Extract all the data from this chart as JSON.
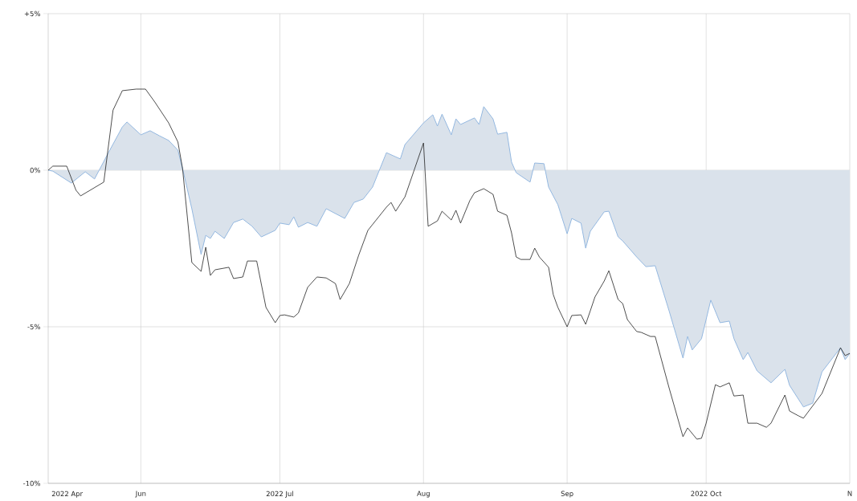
{
  "chart_data": {
    "type": "line",
    "grid": true,
    "ylim": [
      -10,
      5
    ],
    "yticks": [
      {
        "value": 5,
        "label": "+5%"
      },
      {
        "value": 0,
        "label": "0%"
      },
      {
        "value": -5,
        "label": "-5%"
      },
      {
        "value": -10,
        "label": "-10%"
      }
    ],
    "xlim": [
      "2022-05-12",
      "2022-11-01"
    ],
    "annotations": [
      "2022 Apr"
    ],
    "xticks": [
      {
        "value": "2022-06-01",
        "label": "Jun"
      },
      {
        "value": "2022-07-01",
        "label": "2022 Jul"
      },
      {
        "value": "2022-08-01",
        "label": "Aug"
      },
      {
        "value": "2022-09-01",
        "label": "Sep"
      },
      {
        "value": "2022-10-01",
        "label": "2022 Oct"
      },
      {
        "value": "2022-11-01",
        "label": "N"
      }
    ],
    "series": [
      {
        "type": "area",
        "color": "#94b8e0",
        "x": [
          "2022-05-12",
          "2022-05-13",
          "2022-05-17",
          "2022-05-20",
          "2022-05-22",
          "2022-05-25",
          "2022-05-28",
          "2022-05-29",
          "2022-06-01",
          "2022-06-03",
          "2022-06-05",
          "2022-06-07",
          "2022-06-09",
          "2022-06-10",
          "2022-06-12",
          "2022-06-14",
          "2022-06-15",
          "2022-06-16",
          "2022-06-17",
          "2022-06-19",
          "2022-06-21",
          "2022-06-23",
          "2022-06-25",
          "2022-06-27",
          "2022-06-30",
          "2022-07-01",
          "2022-07-03",
          "2022-07-04",
          "2022-07-05",
          "2022-07-07",
          "2022-07-09",
          "2022-07-11",
          "2022-07-15",
          "2022-07-17",
          "2022-07-19",
          "2022-07-21",
          "2022-07-24",
          "2022-07-27",
          "2022-07-28",
          "2022-08-01",
          "2022-08-03",
          "2022-08-04",
          "2022-08-05",
          "2022-08-07",
          "2022-08-08",
          "2022-08-09",
          "2022-08-12",
          "2022-08-13",
          "2022-08-14",
          "2022-08-16",
          "2022-08-17",
          "2022-08-19",
          "2022-08-20",
          "2022-08-21",
          "2022-08-24",
          "2022-08-25",
          "2022-08-27",
          "2022-08-28",
          "2022-08-30",
          "2022-09-01",
          "2022-09-02",
          "2022-09-04",
          "2022-09-05",
          "2022-09-06",
          "2022-09-09",
          "2022-09-10",
          "2022-09-12",
          "2022-09-13",
          "2022-09-16",
          "2022-09-18",
          "2022-09-20",
          "2022-09-23",
          "2022-09-26",
          "2022-09-27",
          "2022-09-28",
          "2022-09-30",
          "2022-10-02",
          "2022-10-04",
          "2022-10-06",
          "2022-10-07",
          "2022-10-09",
          "2022-10-10",
          "2022-10-12",
          "2022-10-15",
          "2022-10-18",
          "2022-10-19",
          "2022-10-22",
          "2022-10-24",
          "2022-10-26",
          "2022-10-30",
          "2022-10-31",
          "2022-11-01"
        ],
        "values": [
          0,
          -0.03,
          -0.41,
          -0.05,
          -0.28,
          0.56,
          1.38,
          1.54,
          1.13,
          1.26,
          1.1,
          0.95,
          0.64,
          0.05,
          -1.23,
          -2.69,
          -2.08,
          -2.18,
          -1.95,
          -2.18,
          -1.67,
          -1.56,
          -1.79,
          -2.13,
          -1.92,
          -1.69,
          -1.74,
          -1.49,
          -1.82,
          -1.67,
          -1.79,
          -1.23,
          -1.54,
          -1.03,
          -0.92,
          -0.54,
          0.56,
          0.36,
          0.82,
          1.51,
          1.77,
          1.41,
          1.79,
          1.13,
          1.64,
          1.46,
          1.67,
          1.46,
          2.03,
          1.64,
          1.15,
          1.21,
          0.26,
          -0.08,
          -0.38,
          0.23,
          0.21,
          -0.54,
          -1.1,
          -2.03,
          -1.54,
          -1.69,
          -2.49,
          -1.95,
          -1.33,
          -1.31,
          -2.13,
          -2.26,
          -2.77,
          -3.08,
          -3.05,
          -4.49,
          -6.0,
          -5.31,
          -5.74,
          -5.38,
          -4.15,
          -4.87,
          -4.82,
          -5.38,
          -6.05,
          -5.82,
          -6.41,
          -6.79,
          -6.36,
          -6.87,
          -7.56,
          -7.44,
          -6.44,
          -5.67,
          -6.05,
          -5.85
        ]
      },
      {
        "color": "#222222",
        "x": [
          "2022-05-12",
          "2022-05-13",
          "2022-05-16",
          "2022-05-18",
          "2022-05-19",
          "2022-05-24",
          "2022-05-26",
          "2022-05-28",
          "2022-05-31",
          "2022-06-02",
          "2022-06-04",
          "2022-06-07",
          "2022-06-09",
          "2022-06-10",
          "2022-06-12",
          "2022-06-14",
          "2022-06-15",
          "2022-06-16",
          "2022-06-17",
          "2022-06-20",
          "2022-06-21",
          "2022-06-23",
          "2022-06-24",
          "2022-06-26",
          "2022-06-28",
          "2022-06-30",
          "2022-07-01",
          "2022-07-02",
          "2022-07-04",
          "2022-07-05",
          "2022-07-07",
          "2022-07-09",
          "2022-07-11",
          "2022-07-13",
          "2022-07-14",
          "2022-07-16",
          "2022-07-18",
          "2022-07-20",
          "2022-07-24",
          "2022-07-25",
          "2022-07-26",
          "2022-07-28",
          "2022-08-01",
          "2022-08-02",
          "2022-08-04",
          "2022-08-05",
          "2022-08-07",
          "2022-08-08",
          "2022-08-09",
          "2022-08-11",
          "2022-08-12",
          "2022-08-14",
          "2022-08-16",
          "2022-08-17",
          "2022-08-19",
          "2022-08-20",
          "2022-08-21",
          "2022-08-22",
          "2022-08-24",
          "2022-08-25",
          "2022-08-26",
          "2022-08-28",
          "2022-08-29",
          "2022-08-30",
          "2022-09-01",
          "2022-09-02",
          "2022-09-04",
          "2022-09-05",
          "2022-09-06",
          "2022-09-07",
          "2022-09-09",
          "2022-09-10",
          "2022-09-12",
          "2022-09-13",
          "2022-09-14",
          "2022-09-16",
          "2022-09-17",
          "2022-09-19",
          "2022-09-20",
          "2022-09-23",
          "2022-09-26",
          "2022-09-27",
          "2022-09-29",
          "2022-09-30",
          "2022-10-01",
          "2022-10-03",
          "2022-10-04",
          "2022-10-06",
          "2022-10-07",
          "2022-10-09",
          "2022-10-10",
          "2022-10-12",
          "2022-10-14",
          "2022-10-15",
          "2022-10-18",
          "2022-10-19",
          "2022-10-21",
          "2022-10-22",
          "2022-10-26",
          "2022-10-30",
          "2022-10-31",
          "2022-11-01"
        ],
        "values": [
          0,
          0.13,
          0.13,
          -0.64,
          -0.82,
          -0.38,
          1.92,
          2.54,
          2.59,
          2.59,
          2.18,
          1.51,
          0.9,
          0.05,
          -2.95,
          -3.23,
          -2.46,
          -3.36,
          -3.18,
          -3.1,
          -3.46,
          -3.41,
          -2.9,
          -2.9,
          -4.38,
          -4.87,
          -4.64,
          -4.62,
          -4.69,
          -4.56,
          -3.74,
          -3.41,
          -3.44,
          -3.62,
          -4.13,
          -3.62,
          -2.72,
          -1.92,
          -1.18,
          -1.03,
          -1.31,
          -0.85,
          0.87,
          -1.79,
          -1.62,
          -1.31,
          -1.59,
          -1.28,
          -1.69,
          -0.97,
          -0.72,
          -0.59,
          -0.77,
          -1.31,
          -1.44,
          -2.0,
          -2.77,
          -2.85,
          -2.85,
          -2.49,
          -2.77,
          -3.1,
          -3.97,
          -4.38,
          -5.0,
          -4.64,
          -4.62,
          -4.92,
          -4.49,
          -4.05,
          -3.54,
          -3.21,
          -4.13,
          -4.26,
          -4.77,
          -5.15,
          -5.18,
          -5.31,
          -5.31,
          -6.95,
          -8.51,
          -8.23,
          -8.59,
          -8.56,
          -8.08,
          -6.85,
          -6.92,
          -6.79,
          -7.21,
          -7.18,
          -8.08,
          -8.08,
          -8.21,
          -8.08,
          -7.18,
          -7.69,
          -7.85,
          -7.92,
          -7.13,
          -5.67,
          -5.92,
          -5.85
        ]
      }
    ]
  }
}
